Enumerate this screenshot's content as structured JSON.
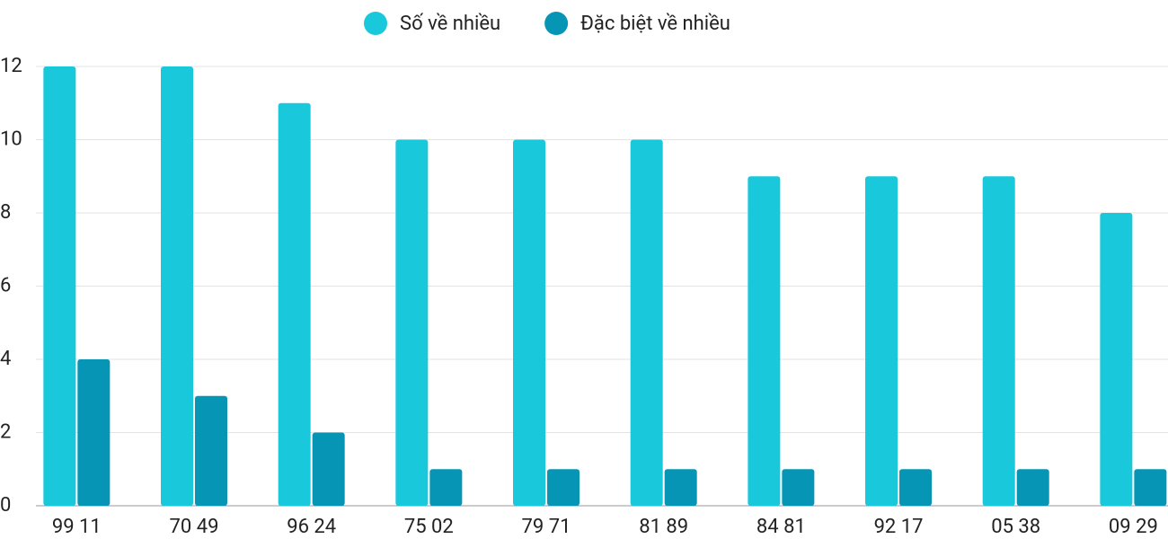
{
  "chart_data": {
    "type": "bar",
    "categories": [
      "99 11",
      "70 49",
      "96 24",
      "75 02",
      "79 71",
      "81 89",
      "84 81",
      "92 17",
      "05 38",
      "09 29"
    ],
    "series": [
      {
        "name": "Số về nhiều",
        "color": "#1ac8db",
        "values": [
          12,
          12,
          11,
          10,
          10,
          10,
          9,
          9,
          9,
          8
        ]
      },
      {
        "name": "Đặc biệt về nhiều",
        "color": "#0795b6",
        "values": [
          4,
          3,
          2,
          1,
          1,
          1,
          1,
          1,
          1,
          1
        ]
      }
    ],
    "ylim": [
      0,
      12
    ],
    "yticks": [
      0,
      2,
      4,
      6,
      8,
      10,
      12
    ],
    "grid": true,
    "legend": "top"
  }
}
